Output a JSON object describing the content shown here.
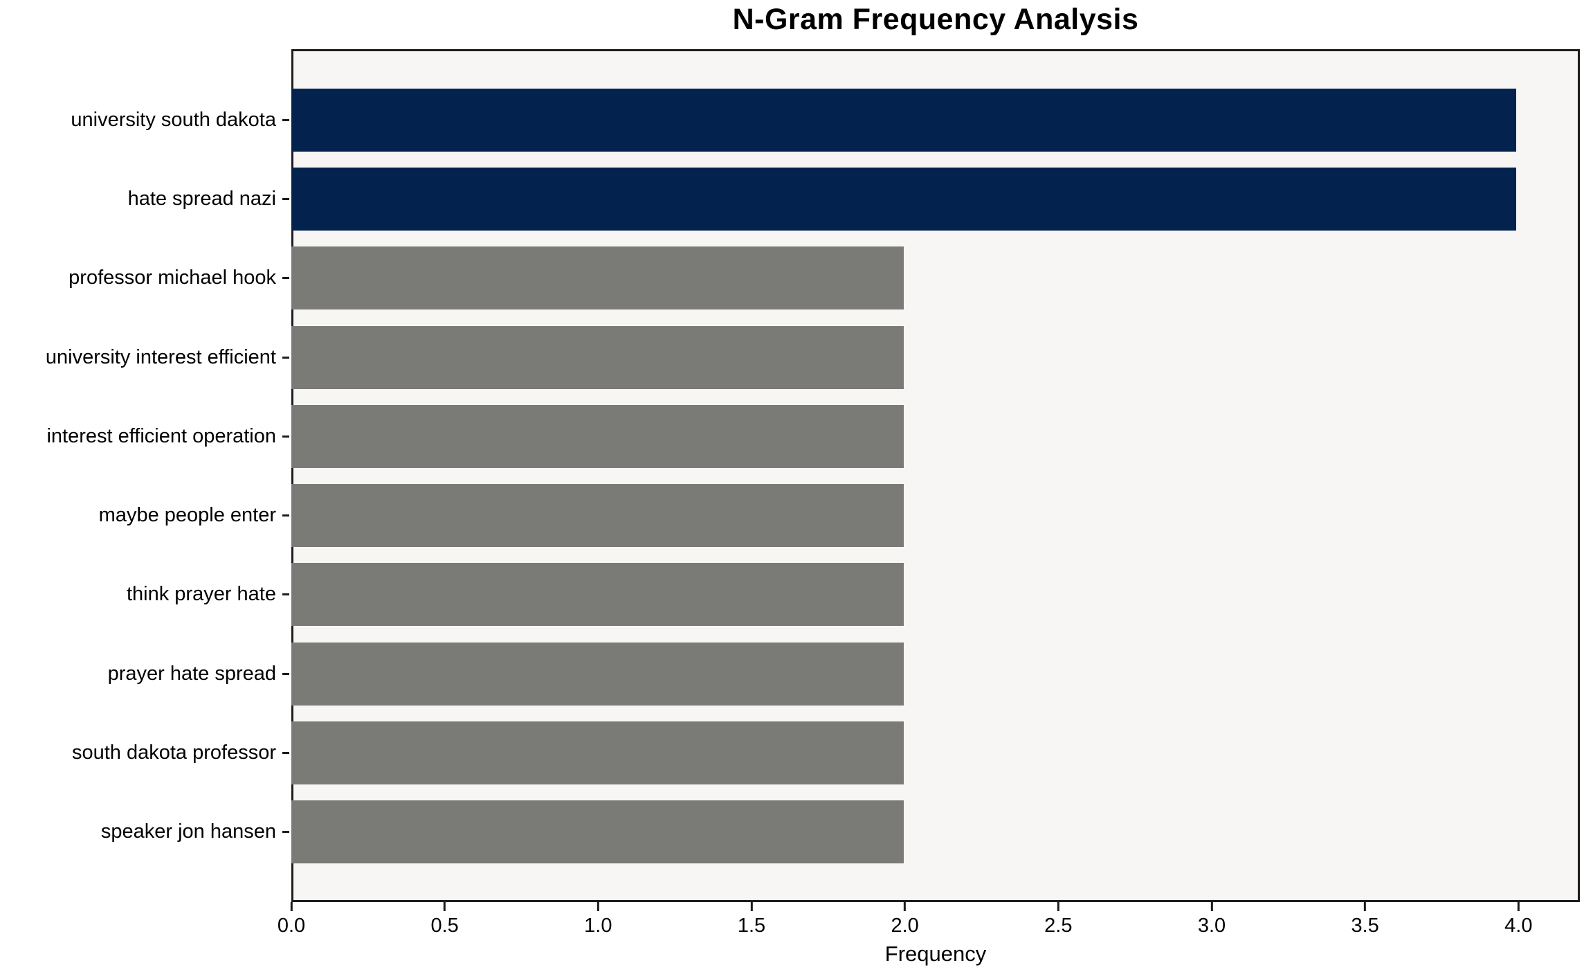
{
  "chart_data": {
    "type": "bar",
    "orientation": "horizontal",
    "title": "N-Gram Frequency Analysis",
    "xlabel": "Frequency",
    "ylabel": "",
    "categories": [
      "university south dakota",
      "hate spread nazi",
      "professor michael hook",
      "university interest efficient",
      "interest efficient operation",
      "maybe people enter",
      "think prayer hate",
      "prayer hate spread",
      "south dakota professor",
      "speaker jon hansen"
    ],
    "values": [
      4,
      4,
      2,
      2,
      2,
      2,
      2,
      2,
      2,
      2
    ],
    "bar_colors": [
      "#03234e",
      "#03234e",
      "#7a7a76",
      "#7a7a76",
      "#7a7a76",
      "#7a7a76",
      "#7a7a76",
      "#7a7a76",
      "#7a7a76",
      "#7a7a76"
    ],
    "highlight_color": "#03234e",
    "default_color": "#7a7a76",
    "plot_background": "#f7f6f5",
    "figure_background": "#ffffff",
    "xlim": [
      0,
      4.2
    ],
    "x_tick_values": [
      0.0,
      0.5,
      1.0,
      1.5,
      2.0,
      2.5,
      3.0,
      3.5,
      4.0
    ],
    "x_tick_labels": [
      "0.0",
      "0.5",
      "1.0",
      "1.5",
      "2.0",
      "2.5",
      "3.0",
      "3.5",
      "4.0"
    ],
    "grid": false,
    "legend": null
  }
}
